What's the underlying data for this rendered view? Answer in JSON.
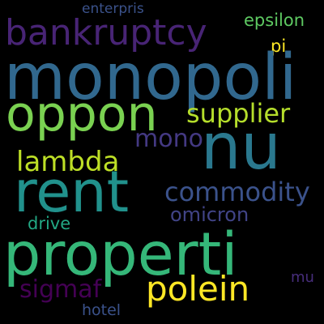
{
  "words": {
    "enterpris": {
      "text": "enterpris",
      "color": "#3b528b"
    },
    "bankruptcy": {
      "text": "bankruptcy",
      "color": "#482475"
    },
    "epsilon": {
      "text": "epsilon",
      "color": "#5ec962"
    },
    "pi": {
      "text": "pi",
      "color": "#fde725"
    },
    "monopoli": {
      "text": "monopoli",
      "color": "#31688e"
    },
    "oppon": {
      "text": "oppon",
      "color": "#7ad151"
    },
    "supplier": {
      "text": "supplier",
      "color": "#b5de2b"
    },
    "nu": {
      "text": "nu",
      "color": "#2a788e"
    },
    "mono": {
      "text": "mono",
      "color": "#443983"
    },
    "lambda": {
      "text": "lambda",
      "color": "#bddf26"
    },
    "rent": {
      "text": "rent",
      "color": "#21918c"
    },
    "commodity": {
      "text": "commodity",
      "color": "#3b528b"
    },
    "omicron": {
      "text": "omicron",
      "color": "#414487"
    },
    "drive": {
      "text": "drive",
      "color": "#22a884"
    },
    "properti": {
      "text": "properti",
      "color": "#35b779"
    },
    "polein": {
      "text": "polein",
      "color": "#fde725"
    },
    "sigmaf": {
      "text": "sigmaf",
      "color": "#440154"
    },
    "mu": {
      "text": "mu",
      "color": "#472d7b"
    },
    "hotel": {
      "text": "hotel",
      "color": "#3b528b"
    }
  }
}
